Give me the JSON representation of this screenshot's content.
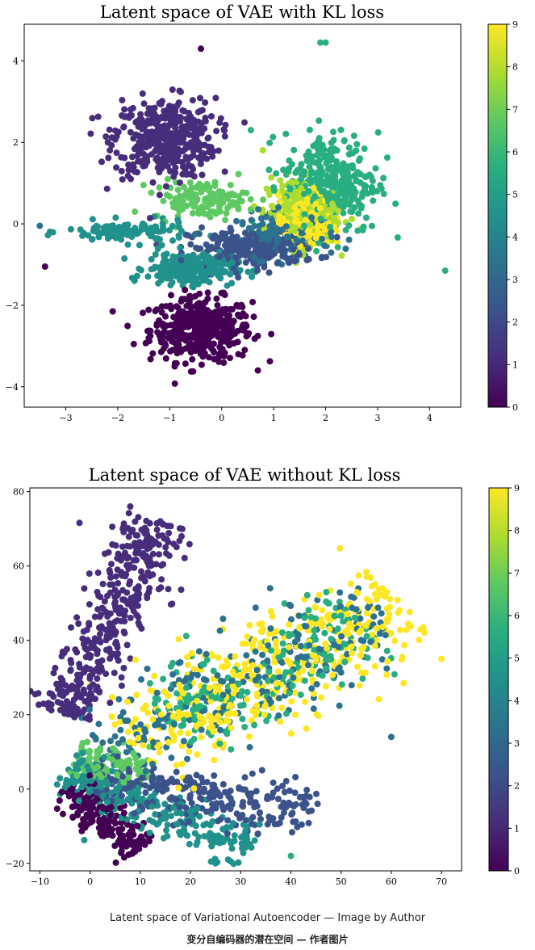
{
  "chart_data": [
    {
      "type": "scatter",
      "title": "Latent space of VAE with KL loss",
      "xlabel": "",
      "ylabel": "",
      "xlim": [
        -3.8,
        4.6
      ],
      "ylim": [
        -4.5,
        4.9
      ],
      "xticks": [
        -3,
        -2,
        -1,
        0,
        1,
        2,
        3,
        4
      ],
      "xtick_labels": [
        "−3",
        "−2",
        "−1",
        "0",
        "1",
        "2",
        "3",
        "4"
      ],
      "yticks": [
        -4,
        -2,
        0,
        2,
        4
      ],
      "ytick_labels": [
        "−4",
        "−2",
        "0",
        "2",
        "4"
      ],
      "colorbar": {
        "range": [
          0,
          9
        ],
        "ticks": [
          0,
          1,
          2,
          3,
          4,
          5,
          6,
          7,
          8,
          9
        ],
        "tick_labels": [
          "0",
          "1",
          "2",
          "3",
          "4",
          "5",
          "6",
          "7",
          "8",
          "9"
        ],
        "colormap": [
          "#440154",
          "#472d7b",
          "#3b528b",
          "#2c728e",
          "#21918c",
          "#28ae80",
          "#5ec962",
          "#addc30",
          "#fde725"
        ]
      },
      "clusters": [
        {
          "label": 0,
          "center": [
            -0.4,
            -2.6
          ],
          "spread": [
            0.75,
            0.6
          ],
          "n": 420
        },
        {
          "label": 1,
          "center": [
            -1.1,
            2.1
          ],
          "spread": [
            0.75,
            0.75
          ],
          "n": 420
        },
        {
          "label": 2,
          "center": [
            0.6,
            -0.6
          ],
          "spread": [
            0.95,
            0.35
          ],
          "n": 220
        },
        {
          "label": 3,
          "center": [
            1.2,
            -0.3
          ],
          "spread": [
            0.7,
            0.45
          ],
          "n": 140
        },
        {
          "label": 4,
          "center": [
            -1.8,
            -0.2
          ],
          "spread": [
            0.9,
            0.2
          ],
          "n": 110
        },
        {
          "label": 5,
          "center": [
            -0.6,
            -1.1
          ],
          "spread": [
            0.65,
            0.3
          ],
          "n": 240
        },
        {
          "label": 6,
          "center": [
            2.1,
            1.0
          ],
          "spread": [
            0.7,
            0.95
          ],
          "n": 340
        },
        {
          "label": 7,
          "center": [
            -0.4,
            0.6
          ],
          "spread": [
            0.7,
            0.35
          ],
          "n": 130
        },
        {
          "label": 8,
          "center": [
            1.5,
            0.3
          ],
          "spread": [
            0.55,
            0.65
          ],
          "n": 220
        },
        {
          "label": 9,
          "center": [
            1.6,
            0.1
          ],
          "spread": [
            0.4,
            0.5
          ],
          "n": 200
        }
      ],
      "outliers": [
        {
          "label": 6,
          "x": 1.9,
          "y": 4.45
        },
        {
          "label": 6,
          "x": 2.0,
          "y": 4.45
        },
        {
          "label": 0,
          "x": -0.4,
          "y": 4.3
        },
        {
          "label": 6,
          "x": 4.3,
          "y": -1.15
        },
        {
          "label": 0,
          "x": -3.4,
          "y": -1.05
        },
        {
          "label": 3,
          "x": -3.5,
          "y": -0.05
        }
      ]
    },
    {
      "type": "scatter",
      "title": "Latent space of VAE without KL loss",
      "xlabel": "",
      "ylabel": "",
      "xlim": [
        -12,
        74
      ],
      "ylim": [
        -22,
        81
      ],
      "xticks": [
        -10,
        0,
        10,
        20,
        30,
        40,
        50,
        60,
        70
      ],
      "xtick_labels": [
        "−10",
        "0",
        "10",
        "20",
        "30",
        "40",
        "50",
        "60",
        "70"
      ],
      "yticks": [
        -20,
        0,
        20,
        40,
        60,
        80
      ],
      "ytick_labels": [
        "−20",
        "0",
        "20",
        "40",
        "60",
        "80"
      ],
      "colorbar": {
        "range": [
          0,
          9
        ],
        "ticks": [
          0,
          1,
          2,
          3,
          4,
          5,
          6,
          7,
          8,
          9
        ],
        "tick_labels": [
          "0",
          "1",
          "2",
          "3",
          "4",
          "5",
          "6",
          "7",
          "8",
          "9"
        ],
        "colormap": [
          "#440154",
          "#472d7b",
          "#3b528b",
          "#2c728e",
          "#21918c",
          "#28ae80",
          "#5ec962",
          "#addc30",
          "#fde725"
        ]
      },
      "clusters": [
        {
          "label": 0,
          "from": [
            -5,
            0
          ],
          "to": [
            10,
            -16
          ],
          "width": 2.2,
          "n": 180
        },
        {
          "label": 1,
          "from": [
            -5,
            20
          ],
          "to": [
            14,
            72
          ],
          "width": 3.5,
          "n": 420
        },
        {
          "label": 2,
          "from": [
            0,
            2
          ],
          "to": [
            45,
            -6
          ],
          "width": 3.5,
          "n": 260
        },
        {
          "label": 3,
          "from": [
            3,
            10
          ],
          "to": [
            58,
            48
          ],
          "width": 6.0,
          "n": 260
        },
        {
          "label": 5,
          "from": [
            -5,
            5
          ],
          "to": [
            32,
            -16
          ],
          "width": 3.0,
          "n": 280
        },
        {
          "label": 6,
          "from": [
            15,
            18
          ],
          "to": [
            55,
            44
          ],
          "width": 6.0,
          "n": 200
        },
        {
          "label": 7,
          "from": [
            -3,
            8
          ],
          "to": [
            12,
            4
          ],
          "width": 2.5,
          "n": 110
        },
        {
          "label": 9,
          "from": [
            8,
            12
          ],
          "to": [
            62,
            50
          ],
          "width": 7.0,
          "n": 420
        }
      ],
      "outliers": [
        {
          "label": 1,
          "x": 8,
          "y": 76
        },
        {
          "label": 1,
          "x": 14,
          "y": 72
        },
        {
          "label": 9,
          "x": 70,
          "y": 35
        },
        {
          "label": 3,
          "x": 60,
          "y": 14
        },
        {
          "label": 6,
          "x": 40,
          "y": -18
        }
      ]
    }
  ],
  "caption": {
    "english": "Latent space of Variational Autoencoder — Image by Author",
    "chinese": "变分自编码器的潜在空间 — 作者图片"
  }
}
